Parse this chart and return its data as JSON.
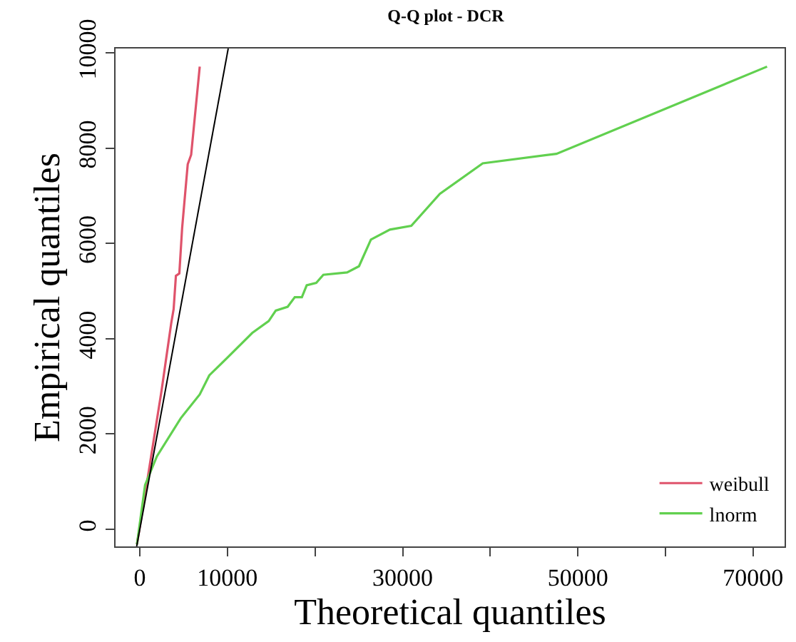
{
  "chart_data": {
    "type": "line",
    "title": "Q-Q plot - DCR",
    "xlabel": "Theoretical quantiles",
    "ylabel": "Empirical quantiles",
    "series": [
      {
        "name": "weibull",
        "color": "#df536b",
        "x": [
          -330,
          860,
          2490,
          3580,
          3860,
          4120,
          4510,
          4830,
          5210,
          5470,
          5860,
          6840
        ],
        "values": [
          -320,
          1030,
          2920,
          4320,
          4620,
          5320,
          5370,
          6320,
          7120,
          7660,
          7860,
          9710
        ]
      },
      {
        "name": "lnorm",
        "color": "#61d04f",
        "x": [
          -330,
          600,
          1950,
          4670,
          6840,
          7930,
          10100,
          12830,
          14710,
          15520,
          16880,
          17690,
          18500,
          19050,
          20140,
          20950,
          23660,
          25020,
          26380,
          28550,
          30990,
          34250,
          39140,
          47560,
          71600
        ],
        "values": [
          -320,
          930,
          1530,
          2330,
          2830,
          3230,
          3620,
          4120,
          4370,
          4590,
          4670,
          4870,
          4870,
          5120,
          5170,
          5340,
          5390,
          5520,
          6080,
          6290,
          6370,
          7040,
          7680,
          7880,
          9710
        ]
      },
      {
        "color": "#000000",
        "x": [
          -360,
          10090
        ],
        "values": [
          -360,
          10090
        ]
      }
    ],
    "xlim": [
      -2770,
      73600
    ],
    "ylim": [
      -360,
      10090
    ],
    "xticks": [
      0,
      10000,
      {
        "value": 20000,
        "label": null
      },
      30000,
      {
        "value": 40000,
        "label": null
      },
      50000,
      {
        "value": 60000,
        "label": null
      },
      70000
    ],
    "yticks": [
      0,
      2000,
      4000,
      6000,
      8000,
      10000
    ],
    "legend": "bottom right",
    "marker": "none",
    "line_style": "solid"
  }
}
